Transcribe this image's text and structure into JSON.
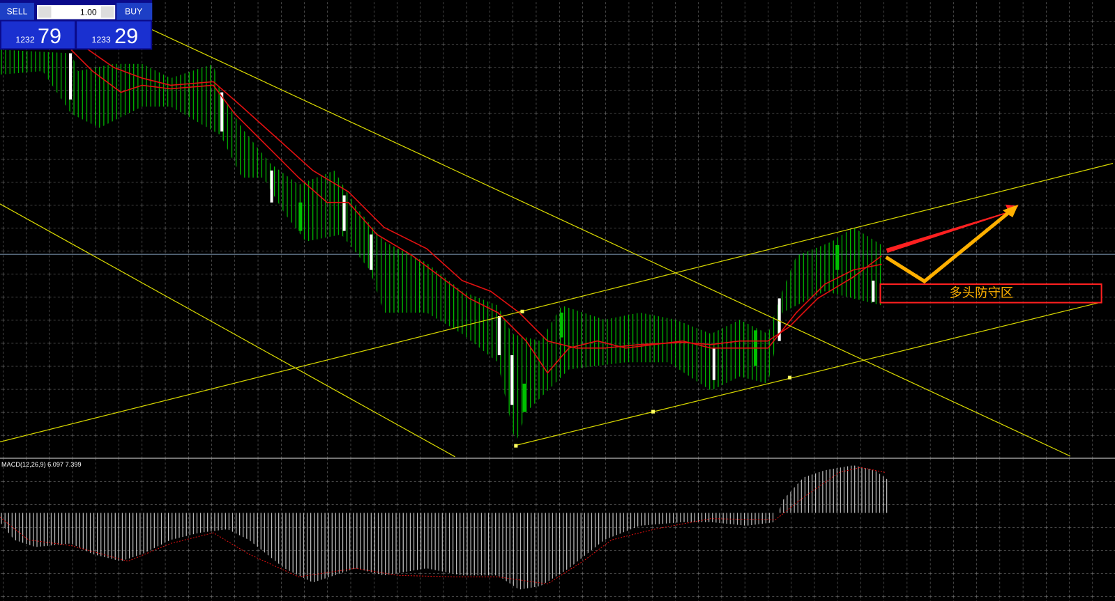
{
  "trade_panel": {
    "sell_label": "SELL",
    "lot": "1.00",
    "buy_label": "BUY",
    "sell_price_main": "1232",
    "sell_price_big": "79",
    "buy_price_main": "1233",
    "buy_price_big": "29"
  },
  "indicator": {
    "label": "MACD(12,26,9) 6.097 7.399"
  },
  "annotation": {
    "text": "多头防守区"
  }
}
